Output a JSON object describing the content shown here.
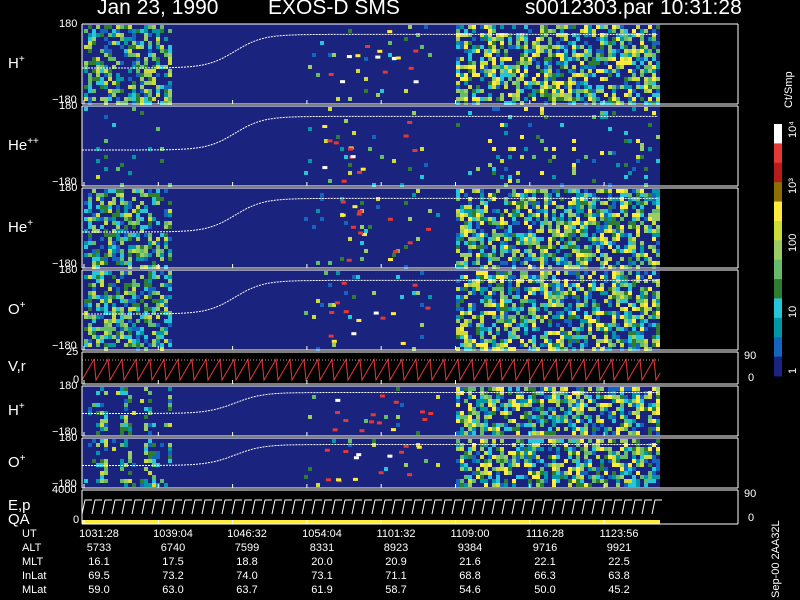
{
  "header": {
    "date": "Jan 23, 1990",
    "instrument": "EXOS-D SMS",
    "file": "s0012303.par",
    "time": "10:31:28"
  },
  "panels": [
    {
      "id": "hplus1",
      "label_base": "H",
      "label_sup": "+",
      "ytop": "180",
      "ybot": "−180"
    },
    {
      "id": "heplusplus",
      "label_base": "He",
      "label_sup": "++",
      "ytop": "180",
      "ybot": "−180"
    },
    {
      "id": "heplus",
      "label_base": "He",
      "label_sup": "+",
      "ytop": "180",
      "ybot": "−180"
    },
    {
      "id": "oplus1",
      "label_base": "O",
      "label_sup": "+",
      "ytop": "180",
      "ybot": "−180"
    },
    {
      "id": "vr",
      "label_base": "V,r",
      "label_sup": "",
      "ytop": "25",
      "ybot": "0",
      "rtop": "90",
      "rbot": "0"
    },
    {
      "id": "hplus2",
      "label_base": "H",
      "label_sup": "+",
      "ytop": "180",
      "ybot": "−180"
    },
    {
      "id": "oplus2",
      "label_base": "O",
      "label_sup": "+",
      "ytop": "180",
      "ybot": "−180"
    },
    {
      "id": "ep",
      "label_base": "E,p",
      "label_sup": "",
      "ytop": "4000",
      "ybot": "0",
      "rtop": "90",
      "rbot": "0"
    }
  ],
  "qa_label": "QA",
  "colorbar": {
    "unit": "Ct/Smp",
    "ticks": [
      "1",
      "10",
      "100",
      "10³",
      "10⁴"
    ],
    "colors": [
      "#1a237e",
      "#1565c0",
      "#0097a7",
      "#26c6da",
      "#2e7d32",
      "#66bb6a",
      "#9ccc65",
      "#cddc39",
      "#ffeb3b",
      "#8d6e00",
      "#b71c1c",
      "#e53935",
      "#ffffff"
    ]
  },
  "footer_note": "Sep-00  2AA32L",
  "chart_data": {
    "type": "table",
    "title": "Jan 23, 1990   EXOS-D SMS",
    "rows": [
      {
        "label": "UT",
        "values": [
          "1031:28",
          "1039:04",
          "1046:32",
          "1054:04",
          "1101:32",
          "1109:00",
          "1116:28",
          "1123:56"
        ]
      },
      {
        "label": "ALT",
        "values": [
          "5733",
          "6740",
          "7599",
          "8331",
          "8923",
          "9384",
          "9716",
          "9921"
        ]
      },
      {
        "label": "MLT",
        "values": [
          "16.1",
          "17.5",
          "18.8",
          "20.0",
          "20.9",
          "21.6",
          "22.1",
          "22.5"
        ]
      },
      {
        "label": "InLat",
        "values": [
          "69.5",
          "73.2",
          "74.0",
          "73.1",
          "71.1",
          "68.8",
          "66.3",
          "63.8"
        ]
      },
      {
        "label": "MLat",
        "values": [
          "59.0",
          "63.0",
          "63.7",
          "61.9",
          "58.7",
          "54.6",
          "50.0",
          "45.2"
        ]
      }
    ]
  }
}
